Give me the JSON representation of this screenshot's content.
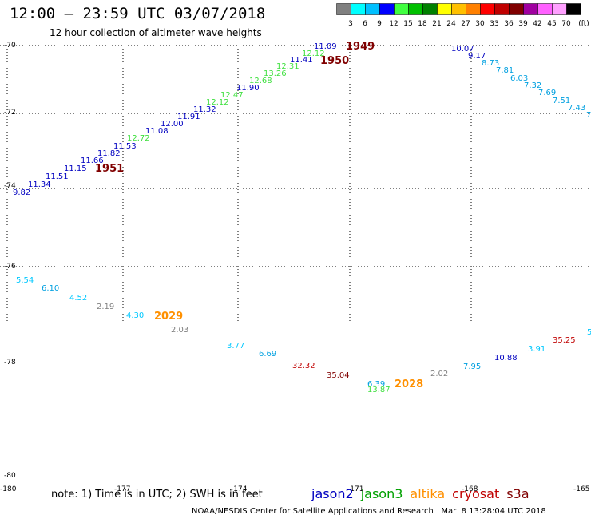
{
  "title": "12:00 – 23:59 UTC 03/07/2018",
  "subtitle": "12 hour collection of altimeter wave heights",
  "legend": {
    "colors": [
      "#808080",
      "#00ffff",
      "#00c0ff",
      "#0000ff",
      "#40ff40",
      "#00c000",
      "#008000",
      "#ffff00",
      "#ffc000",
      "#ff8000",
      "#ff0000",
      "#c00000",
      "#800000",
      "#a000a0",
      "#ff60ff",
      "#ffa0ff",
      "#000000"
    ],
    "labels": [
      "3",
      "6",
      "9",
      "12",
      "15",
      "18",
      "21",
      "24",
      "27",
      "30",
      "33",
      "36",
      "39",
      "42",
      "45",
      "70",
      "(ft)"
    ]
  },
  "axes": {
    "y_labels": [
      "-70",
      "-72",
      "-74",
      "-76",
      "-78",
      "-80"
    ],
    "x_labels": [
      "-180",
      "-177",
      "-174",
      "-171",
      "-168",
      "-165"
    ]
  },
  "points": [
    {
      "t": "9.82",
      "c": "#0000c0"
    },
    {
      "t": "11.34",
      "c": "#0000c0"
    },
    {
      "t": "11.51",
      "c": "#0000c0"
    },
    {
      "t": "11.15",
      "c": "#0000c0"
    },
    {
      "t": "11.66",
      "c": "#0000c0"
    },
    {
      "t": "11.82",
      "c": "#0000c0"
    },
    {
      "t": "11.53",
      "c": "#0000c0"
    },
    {
      "t": "12.72",
      "c": "#40e040"
    },
    {
      "t": "11.08",
      "c": "#0000c0"
    },
    {
      "t": "12.00",
      "c": "#0000c0"
    },
    {
      "t": "11.91",
      "c": "#0000c0"
    },
    {
      "t": "11.32",
      "c": "#0000c0"
    },
    {
      "t": "12.12",
      "c": "#40e040"
    },
    {
      "t": "12.47",
      "c": "#40e040"
    },
    {
      "t": "11.90",
      "c": "#0000c0"
    },
    {
      "t": "12.68",
      "c": "#40e040"
    },
    {
      "t": "13.26",
      "c": "#40e040"
    },
    {
      "t": "12.31",
      "c": "#40e040"
    },
    {
      "t": "11.41",
      "c": "#0000c0"
    },
    {
      "t": "12.12",
      "c": "#40e040"
    },
    {
      "t": "11.09",
      "c": "#0000c0"
    },
    {
      "t": "10.07",
      "c": "#0000c0"
    },
    {
      "t": "9.17",
      "c": "#0000c0"
    },
    {
      "t": "8.73",
      "c": "#00a0e0"
    },
    {
      "t": "7.81",
      "c": "#00a0e0"
    },
    {
      "t": "6.03",
      "c": "#00a0e0"
    },
    {
      "t": "7.32",
      "c": "#00a0e0"
    },
    {
      "t": "7.69",
      "c": "#00a0e0"
    },
    {
      "t": "7.51",
      "c": "#00a0e0"
    },
    {
      "t": "7.43",
      "c": "#00a0e0"
    },
    {
      "t": "7",
      "c": "#00a0e0"
    },
    {
      "t": "5.54",
      "c": "#00c8ff"
    },
    {
      "t": "6.10",
      "c": "#00a0e0"
    },
    {
      "t": "4.52",
      "c": "#00c8ff"
    },
    {
      "t": "2.19",
      "c": "#808080"
    },
    {
      "t": "4.30",
      "c": "#00c8ff"
    },
    {
      "t": "2.03",
      "c": "#808080"
    },
    {
      "t": "3.77",
      "c": "#00c8ff"
    },
    {
      "t": "6.69",
      "c": "#00a0e0"
    },
    {
      "t": "32.32",
      "c": "#c00000"
    },
    {
      "t": "35.04",
      "c": "#800000"
    },
    {
      "t": "6.39",
      "c": "#00a0e0"
    },
    {
      "t": "13.87",
      "c": "#40e040"
    },
    {
      "t": "2.02",
      "c": "#808080"
    },
    {
      "t": "7.95",
      "c": "#00a0e0"
    },
    {
      "t": "10.88",
      "c": "#0000c0"
    },
    {
      "t": "3.91",
      "c": "#00c8ff"
    },
    {
      "t": "35.25",
      "c": "#c00000"
    },
    {
      "t": "5",
      "c": "#00c8ff"
    }
  ],
  "time_labels": [
    {
      "t": "1949",
      "c": "#800000"
    },
    {
      "t": "1950",
      "c": "#800000"
    },
    {
      "t": "1951",
      "c": "#800000"
    },
    {
      "t": "2029",
      "c": "#ff9000"
    },
    {
      "t": "2028",
      "c": "#ff9000"
    }
  ],
  "note": "note: 1) Time is in UTC; 2) SWH is in feet",
  "satellites": [
    {
      "name": "jason2",
      "color": "#0000c0"
    },
    {
      "name": "jason3",
      "color": "#00a000"
    },
    {
      "name": "altika",
      "color": "#ff9000"
    },
    {
      "name": "cryosat",
      "color": "#c00000"
    },
    {
      "name": "s3a",
      "color": "#800000"
    }
  ],
  "credits": "NOAA/NESDIS Center for Satellite Applications and Research   Mar  8 13:28:04 UTC 2018"
}
